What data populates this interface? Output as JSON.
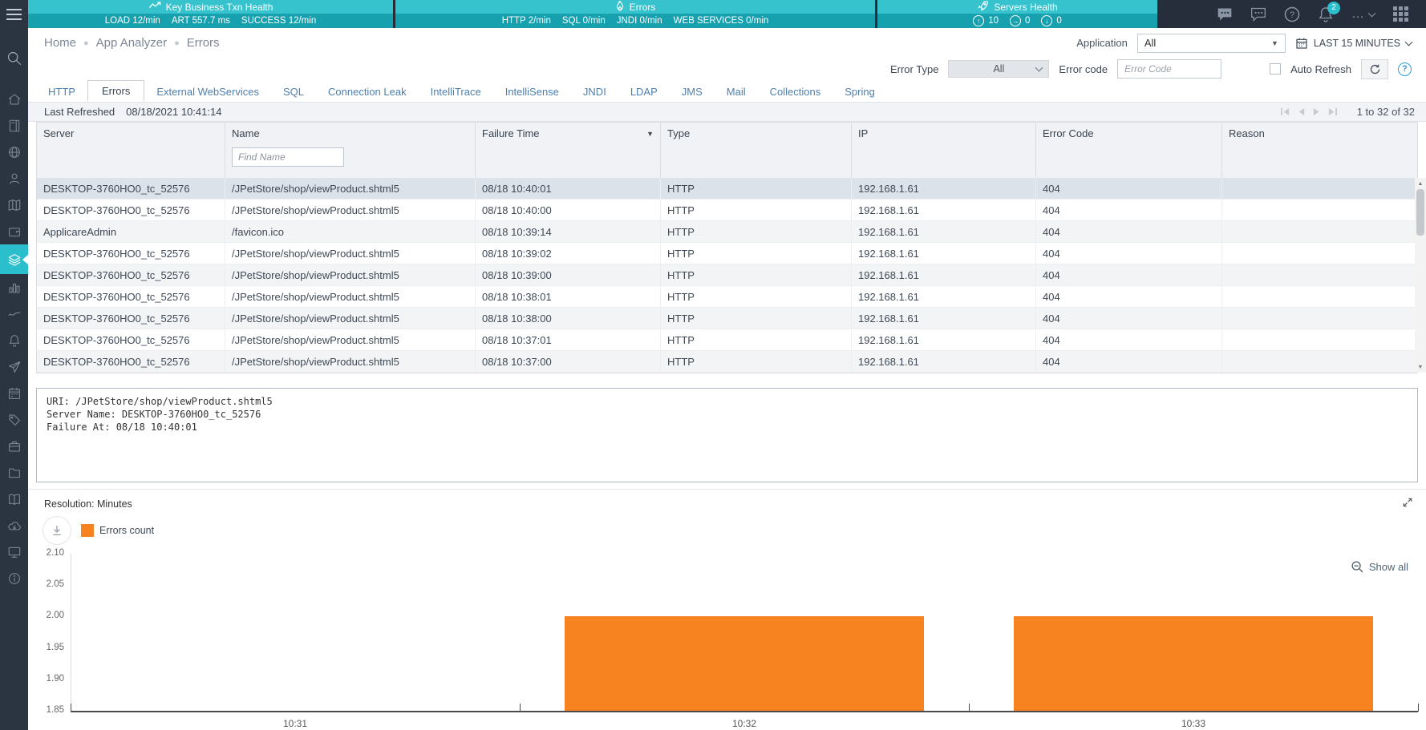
{
  "colors": {
    "teal_light": "#36c3ce",
    "teal_dark": "#17a0ae",
    "sidebar_active": "#2bbfcd",
    "accent_orange": "#f6831f",
    "badge_teal": "#2bbfcd",
    "tab_blue": "#4d7fae",
    "help_blue": "#2f9bd8"
  },
  "topbar": {
    "panels": [
      {
        "icon": "trend-icon",
        "title": "Key Business Txn Health",
        "metrics": [
          {
            "label": "LOAD",
            "value": "12/min"
          },
          {
            "label": "ART",
            "value": "557.7 ms"
          },
          {
            "label": "SUCCESS",
            "value": "12/min"
          }
        ]
      },
      {
        "icon": "fire-icon",
        "title": "Errors",
        "metrics": [
          {
            "label": "HTTP",
            "value": "2/min"
          },
          {
            "label": "SQL",
            "value": "0/min"
          },
          {
            "label": "JNDI",
            "value": "0/min"
          },
          {
            "label": "WEB SERVICES",
            "value": "0/min"
          }
        ]
      },
      {
        "icon": "rocket-icon",
        "title": "Servers Health",
        "metrics": [
          {
            "label": "up",
            "value": "10"
          },
          {
            "label": "right",
            "value": "0"
          },
          {
            "label": "down",
            "value": "0"
          }
        ]
      }
    ],
    "notification_count": "2"
  },
  "sidebar": {
    "items": [
      "search-icon",
      "home-icon",
      "notebook-icon",
      "globe-icon",
      "user-icon",
      "map-icon",
      "wallet-icon",
      "layers-icon",
      "bar-chart-icon",
      "trend-icon",
      "bell-icon",
      "send-icon",
      "calendar-icon",
      "tag-icon",
      "briefcase-icon",
      "folder-icon",
      "book-icon",
      "cloud-icon",
      "monitor-icon",
      "info-icon"
    ],
    "active_icon": "layers-icon"
  },
  "breadcrumb": {
    "items": [
      "Home",
      "App Analyzer",
      "Errors"
    ]
  },
  "app_filter": {
    "label": "Application",
    "value": "All",
    "time_range": "LAST 15 MINUTES"
  },
  "filters": {
    "error_type_label": "Error Type",
    "error_type_value": "All",
    "error_code_label": "Error code",
    "error_code_placeholder": "Error Code",
    "auto_refresh_label": "Auto Refresh"
  },
  "tabs": {
    "items": [
      "HTTP",
      "Errors",
      "External WebServices",
      "SQL",
      "Connection Leak",
      "IntelliTrace",
      "IntelliSense",
      "JNDI",
      "LDAP",
      "JMS",
      "Mail",
      "Collections",
      "Spring"
    ],
    "active": "Errors"
  },
  "toolbar": {
    "last_refreshed_label": "Last Refreshed",
    "last_refreshed_value": "08/18/2021 10:41:14",
    "pagination_text": "1 to 32 of 32"
  },
  "table": {
    "columns": [
      "Server",
      "Name",
      "Failure Time",
      "Type",
      "IP",
      "Error Code",
      "Reason"
    ],
    "sorted_column": "Failure Time",
    "find_name_placeholder": "Find Name",
    "selected_row_index": 0,
    "rows": [
      {
        "server": "DESKTOP-3760HO0_tc_52576",
        "name": "/JPetStore/shop/viewProduct.shtml5",
        "failure_time": "08/18 10:40:01",
        "type": "HTTP",
        "ip": "192.168.1.61",
        "error_code": "404",
        "reason": ""
      },
      {
        "server": "DESKTOP-3760HO0_tc_52576",
        "name": "/JPetStore/shop/viewProduct.shtml5",
        "failure_time": "08/18 10:40:00",
        "type": "HTTP",
        "ip": "192.168.1.61",
        "error_code": "404",
        "reason": ""
      },
      {
        "server": "ApplicareAdmin",
        "name": "/favicon.ico",
        "failure_time": "08/18 10:39:14",
        "type": "HTTP",
        "ip": "192.168.1.61",
        "error_code": "404",
        "reason": ""
      },
      {
        "server": "DESKTOP-3760HO0_tc_52576",
        "name": "/JPetStore/shop/viewProduct.shtml5",
        "failure_time": "08/18 10:39:02",
        "type": "HTTP",
        "ip": "192.168.1.61",
        "error_code": "404",
        "reason": ""
      },
      {
        "server": "DESKTOP-3760HO0_tc_52576",
        "name": "/JPetStore/shop/viewProduct.shtml5",
        "failure_time": "08/18 10:39:00",
        "type": "HTTP",
        "ip": "192.168.1.61",
        "error_code": "404",
        "reason": ""
      },
      {
        "server": "DESKTOP-3760HO0_tc_52576",
        "name": "/JPetStore/shop/viewProduct.shtml5",
        "failure_time": "08/18 10:38:01",
        "type": "HTTP",
        "ip": "192.168.1.61",
        "error_code": "404",
        "reason": ""
      },
      {
        "server": "DESKTOP-3760HO0_tc_52576",
        "name": "/JPetStore/shop/viewProduct.shtml5",
        "failure_time": "08/18 10:38:00",
        "type": "HTTP",
        "ip": "192.168.1.61",
        "error_code": "404",
        "reason": ""
      },
      {
        "server": "DESKTOP-3760HO0_tc_52576",
        "name": "/JPetStore/shop/viewProduct.shtml5",
        "failure_time": "08/18 10:37:01",
        "type": "HTTP",
        "ip": "192.168.1.61",
        "error_code": "404",
        "reason": ""
      },
      {
        "server": "DESKTOP-3760HO0_tc_52576",
        "name": "/JPetStore/shop/viewProduct.shtml5",
        "failure_time": "08/18 10:37:00",
        "type": "HTTP",
        "ip": "192.168.1.61",
        "error_code": "404",
        "reason": ""
      }
    ]
  },
  "details": {
    "lines": [
      "URI: /JPetStore/shop/viewProduct.shtml5",
      "Server Name: DESKTOP-3760HO0_tc_52576",
      "Failure At: 08/18 10:40:01"
    ]
  },
  "chart": {
    "resolution_label": "Resolution: Minutes",
    "show_all_label": "Show all"
  },
  "chart_data": {
    "type": "bar",
    "title": "Errors count",
    "categories": [
      "10:31",
      "10:32",
      "10:33"
    ],
    "values": [
      0,
      2,
      2
    ],
    "legend": [
      "Errors count"
    ],
    "legend_position": "top-left",
    "bar_color": "#f6831f",
    "ylim": [
      1.85,
      2.1
    ],
    "yticks": [
      2.1,
      2.05,
      2.0,
      1.95,
      1.9,
      1.85
    ],
    "grid": false,
    "xlabel": "",
    "ylabel": ""
  }
}
